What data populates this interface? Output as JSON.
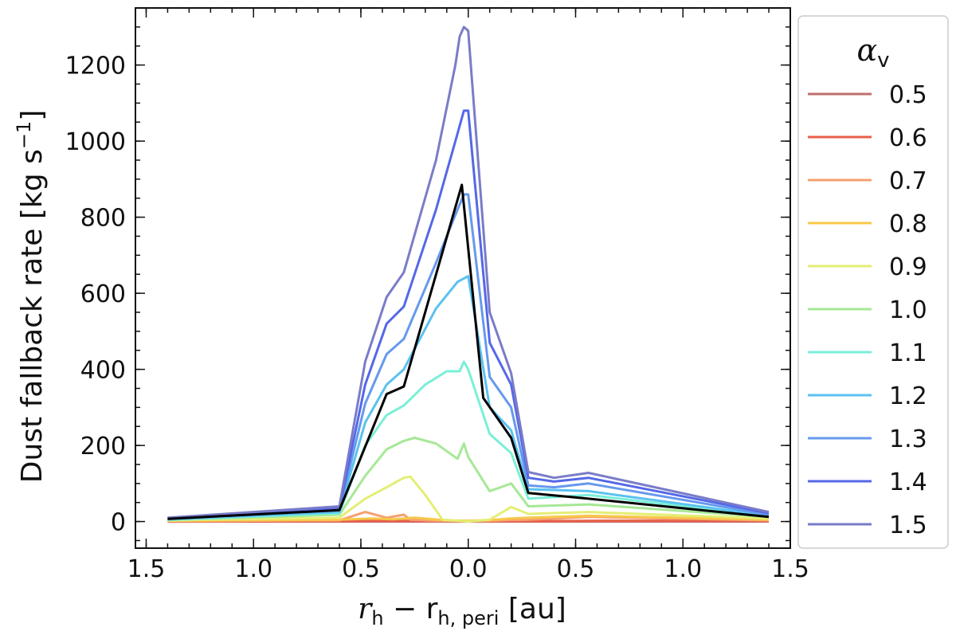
{
  "chart_data": {
    "type": "line",
    "xlabel_main": "r",
    "xlabel_sub1": "h",
    "xlabel_mid": " − r",
    "xlabel_sub2": "h, peri",
    "xlabel_unit": " [au]",
    "ylabel_text": "Dust fallback rate [kg s",
    "ylabel_sup": "−1",
    "ylabel_end": "]",
    "xlim": [
      -1.55,
      1.5
    ],
    "ylim": [
      -70,
      1350
    ],
    "x_ticks": [
      {
        "pos": -1.5,
        "label": "1.5"
      },
      {
        "pos": -1.0,
        "label": "1.0"
      },
      {
        "pos": -0.5,
        "label": "0.5"
      },
      {
        "pos": 0.0,
        "label": "0.0"
      },
      {
        "pos": 0.5,
        "label": "0.5"
      },
      {
        "pos": 1.0,
        "label": "1.0"
      },
      {
        "pos": 1.5,
        "label": "1.5"
      }
    ],
    "y_ticks": [
      0,
      200,
      400,
      600,
      800,
      1000,
      1200
    ],
    "legend": {
      "title_main": "α",
      "title_sub": "v",
      "placement": "outside-right"
    },
    "series": [
      {
        "name": "0.5",
        "color": "#c0706e",
        "x": [
          -1.4,
          -0.6,
          0.0,
          0.3,
          0.6,
          1.4
        ],
        "y": [
          0,
          0,
          0,
          0,
          0,
          0
        ]
      },
      {
        "name": "0.6",
        "color": "#e8604a",
        "x": [
          -1.4,
          -0.6,
          -0.4,
          0.0,
          0.3,
          0.6,
          1.4
        ],
        "y": [
          0,
          1,
          2,
          1,
          1,
          2,
          2
        ]
      },
      {
        "name": "0.7",
        "color": "#f5a070",
        "x": [
          -1.4,
          -0.6,
          -0.48,
          -0.38,
          -0.3,
          -0.27,
          -0.15,
          0.0,
          0.1,
          0.2,
          0.28,
          0.56,
          1.4
        ],
        "y": [
          1,
          3,
          25,
          10,
          18,
          5,
          2,
          1,
          2,
          4,
          5,
          12,
          3
        ]
      },
      {
        "name": "0.8",
        "color": "#f7c84a",
        "x": [
          -1.4,
          -0.6,
          -0.45,
          -0.35,
          -0.25,
          -0.1,
          0.0,
          0.1,
          0.2,
          0.28,
          0.56,
          1.4
        ],
        "y": [
          2,
          5,
          8,
          6,
          10,
          3,
          2,
          4,
          8,
          10,
          15,
          5
        ]
      },
      {
        "name": "0.9",
        "color": "#e4ee74",
        "x": [
          -1.4,
          -0.6,
          -0.48,
          -0.38,
          -0.3,
          -0.27,
          -0.2,
          -0.12,
          0.0,
          0.1,
          0.2,
          0.28,
          0.56,
          1.4
        ],
        "y": [
          3,
          10,
          60,
          90,
          115,
          118,
          70,
          5,
          0,
          5,
          38,
          20,
          25,
          8
        ]
      },
      {
        "name": "1.0",
        "color": "#a6e896",
        "x": [
          -1.4,
          -0.6,
          -0.48,
          -0.38,
          -0.3,
          -0.25,
          -0.15,
          -0.05,
          -0.02,
          0.0,
          0.1,
          0.2,
          0.28,
          0.56,
          1.4
        ],
        "y": [
          4,
          18,
          120,
          190,
          212,
          220,
          205,
          165,
          205,
          170,
          80,
          100,
          40,
          45,
          12
        ]
      },
      {
        "name": "1.1",
        "color": "#7aefd8",
        "x": [
          -1.4,
          -0.6,
          -0.48,
          -0.38,
          -0.3,
          -0.2,
          -0.1,
          -0.04,
          -0.02,
          0.0,
          0.1,
          0.2,
          0.28,
          0.56,
          1.4
        ],
        "y": [
          5,
          22,
          200,
          280,
          305,
          360,
          395,
          395,
          420,
          400,
          230,
          180,
          60,
          70,
          14
        ]
      },
      {
        "name": "1.2",
        "color": "#5ac2f0",
        "x": [
          -1.4,
          -0.6,
          -0.48,
          -0.38,
          -0.3,
          -0.15,
          -0.05,
          0.0,
          0.1,
          0.2,
          0.28,
          0.56,
          1.4
        ],
        "y": [
          6,
          25,
          260,
          360,
          400,
          560,
          630,
          645,
          300,
          240,
          85,
          80,
          15
        ]
      },
      {
        "name": "1.3",
        "color": "#6699ee",
        "x": [
          -1.4,
          -0.6,
          -0.48,
          -0.38,
          -0.3,
          -0.15,
          -0.05,
          -0.02,
          0.0,
          0.1,
          0.2,
          0.28,
          0.4,
          0.56,
          1.4
        ],
        "y": [
          7,
          30,
          310,
          440,
          480,
          680,
          820,
          860,
          860,
          380,
          300,
          95,
          90,
          100,
          18
        ]
      },
      {
        "name": "1.4",
        "color": "#5468e8",
        "x": [
          -1.4,
          -0.6,
          -0.48,
          -0.38,
          -0.3,
          -0.15,
          -0.05,
          -0.02,
          0.0,
          0.1,
          0.2,
          0.28,
          0.4,
          0.56,
          1.4
        ],
        "y": [
          8,
          35,
          360,
          520,
          565,
          820,
          1020,
          1080,
          1080,
          470,
          360,
          115,
          105,
          115,
          22
        ]
      },
      {
        "name": "1.5",
        "color": "#7a7cc8",
        "x": [
          -1.4,
          -0.6,
          -0.48,
          -0.38,
          -0.3,
          -0.15,
          -0.06,
          -0.04,
          -0.02,
          0.0,
          0.1,
          0.2,
          0.28,
          0.4,
          0.56,
          1.4
        ],
        "y": [
          10,
          40,
          420,
          590,
          655,
          950,
          1200,
          1275,
          1300,
          1290,
          550,
          390,
          130,
          115,
          128,
          25
        ]
      }
    ],
    "black_line": {
      "color": "#000000",
      "x": [
        -1.4,
        -0.6,
        -0.38,
        -0.3,
        -0.03,
        0.07,
        0.2,
        0.28,
        0.56,
        1.4
      ],
      "y": [
        7,
        30,
        335,
        355,
        885,
        325,
        220,
        75,
        60,
        12
      ]
    }
  }
}
